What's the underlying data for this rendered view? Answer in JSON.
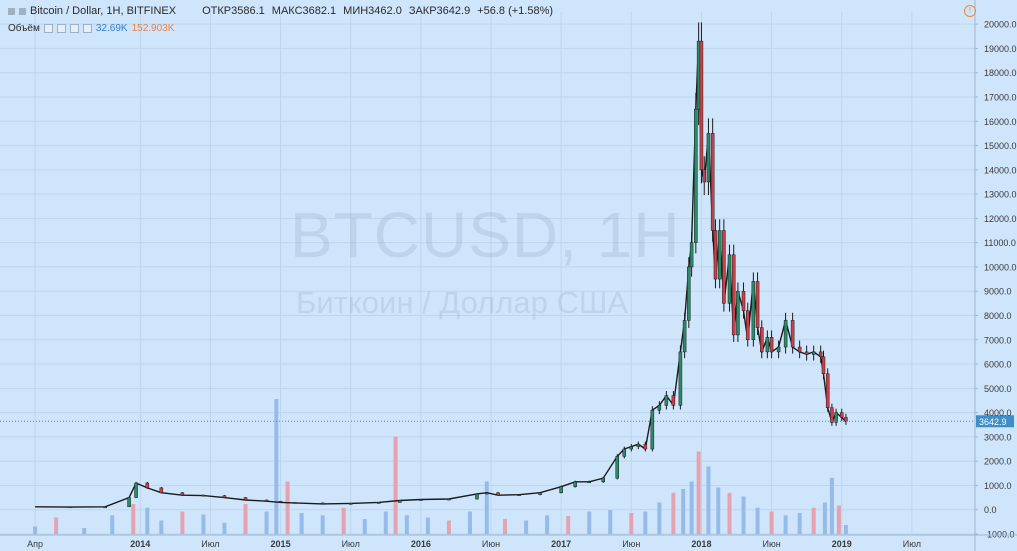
{
  "header": {
    "symbol": "Bitcoin / Dollar, 1H, BITFINEX",
    "open": "ОТКР3586.1",
    "high": "МАКС3682.1",
    "low": "МИН3462.0",
    "close": "ЗАКР3642.9",
    "change": "+56.8 (+1.58%)"
  },
  "volume_row": {
    "label": "Объём",
    "value_blue": "32.69K",
    "value_orange": "152.903K"
  },
  "watermark": {
    "ticker": "BTCUSD, 1H",
    "description": "Биткоин / Доллар США"
  },
  "chart_data": {
    "type": "candlestick",
    "symbol": "BTCUSD",
    "price_axis": {
      "ylim": [
        -1000,
        20500
      ],
      "ticks": [
        -1000,
        0,
        1000,
        2000,
        3000,
        4000,
        5000,
        6000,
        7000,
        8000,
        9000,
        10000,
        11000,
        12000,
        13000,
        14000,
        15000,
        16000,
        17000,
        18000,
        19000,
        20000
      ],
      "tick_labels": [
        "-1000.0",
        "0.0",
        "1000.0",
        "2000.0",
        "3000.0",
        "4000.0",
        "5000.0",
        "6000.0",
        "7000.0",
        "8000.0",
        "9000.0",
        "10000.0",
        "11000.0",
        "12000.0",
        "13000.0",
        "14000.0",
        "15000.0",
        "16000.0",
        "17000.0",
        "18000.0",
        "19000.0",
        "20000.0"
      ]
    },
    "time_axis": {
      "xlim": [
        2013.0,
        2019.95
      ],
      "ticks": [
        2013.25,
        2014.0,
        2014.5,
        2015.0,
        2015.5,
        2016.0,
        2016.5,
        2017.0,
        2017.5,
        2018.0,
        2018.5,
        2019.0,
        2019.5
      ],
      "tick_labels": [
        "Апр",
        "2014",
        "Июл",
        "2015",
        "Июл",
        "2016",
        "Июн",
        "2017",
        "Июн",
        "2018",
        "Июн",
        "2019",
        "Июл"
      ],
      "bold": [
        false,
        true,
        false,
        true,
        false,
        true,
        false,
        true,
        false,
        true,
        false,
        true,
        false
      ]
    },
    "last_price": 3642.9,
    "last_price_label": "3642.9",
    "price_series": {
      "x": [
        2013.25,
        2013.5,
        2013.75,
        2013.92,
        2013.97,
        2014.05,
        2014.15,
        2014.3,
        2014.45,
        2014.6,
        2014.75,
        2014.9,
        2015.0,
        2015.1,
        2015.3,
        2015.5,
        2015.7,
        2015.85,
        2016.0,
        2016.2,
        2016.4,
        2016.47,
        2016.55,
        2016.7,
        2016.85,
        2017.0,
        2017.1,
        2017.2,
        2017.3,
        2017.4,
        2017.45,
        2017.5,
        2017.55,
        2017.6,
        2017.65,
        2017.7,
        2017.75,
        2017.8,
        2017.85,
        2017.88,
        2017.91,
        2017.93,
        2017.96,
        2017.98,
        2018.0,
        2018.02,
        2018.05,
        2018.08,
        2018.1,
        2018.13,
        2018.16,
        2018.2,
        2018.23,
        2018.26,
        2018.3,
        2018.33,
        2018.37,
        2018.4,
        2018.43,
        2018.47,
        2018.5,
        2018.55,
        2018.6,
        2018.65,
        2018.7,
        2018.75,
        2018.8,
        2018.85,
        2018.87,
        2018.9,
        2018.93,
        2018.96,
        2019.0,
        2019.03
      ],
      "values": [
        120,
        110,
        120,
        500,
        1100,
        900,
        700,
        600,
        580,
        500,
        400,
        350,
        300,
        280,
        240,
        260,
        300,
        380,
        420,
        440,
        650,
        700,
        600,
        620,
        700,
        950,
        1150,
        1150,
        1300,
        2200,
        2500,
        2600,
        2700,
        2500,
        4100,
        4300,
        4700,
        4300,
        6500,
        7800,
        10000,
        11000,
        16500,
        19300,
        14000,
        13500,
        15500,
        11500,
        9500,
        11500,
        8500,
        10500,
        7200,
        9000,
        8200,
        7000,
        9400,
        7500,
        6500,
        7100,
        6500,
        6700,
        7800,
        6700,
        6500,
        6400,
        6500,
        6300,
        5600,
        4200,
        3600,
        4000,
        3800,
        3642.9
      ]
    },
    "volume_series": {
      "unit": "K",
      "note": "bars colored red (down) / blue (up)",
      "x": [
        2013.25,
        2013.4,
        2013.6,
        2013.8,
        2013.95,
        2014.05,
        2014.15,
        2014.3,
        2014.45,
        2014.6,
        2014.75,
        2014.9,
        2014.97,
        2015.05,
        2015.15,
        2015.3,
        2015.45,
        2015.6,
        2015.75,
        2015.82,
        2015.9,
        2016.05,
        2016.2,
        2016.35,
        2016.47,
        2016.6,
        2016.75,
        2016.9,
        2017.05,
        2017.2,
        2017.35,
        2017.5,
        2017.6,
        2017.7,
        2017.8,
        2017.87,
        2017.93,
        2017.98,
        2018.05,
        2018.12,
        2018.2,
        2018.3,
        2018.4,
        2018.5,
        2018.6,
        2018.7,
        2018.8,
        2018.88,
        2018.93,
        2018.98,
        2019.03
      ],
      "values": [
        10,
        22,
        8,
        25,
        40,
        35,
        18,
        30,
        26,
        15,
        40,
        30,
        180,
        70,
        28,
        25,
        35,
        20,
        30,
        130,
        25,
        22,
        18,
        30,
        70,
        20,
        18,
        25,
        24,
        30,
        32,
        28,
        30,
        42,
        55,
        60,
        70,
        110,
        90,
        62,
        55,
        50,
        35,
        30,
        25,
        28,
        35,
        42,
        75,
        38,
        12
      ]
    }
  }
}
